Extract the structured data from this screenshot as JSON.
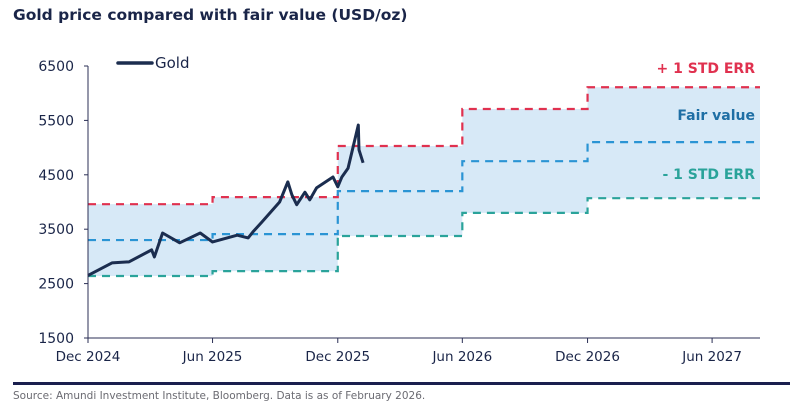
{
  "title": "Gold price compared with fair value (USD/oz)",
  "source": "Source: Amundi Investment Institute, Bloomberg. Data is as of February 2026.",
  "chart_data": {
    "type": "line",
    "title": "Gold price compared with fair value (USD/oz)",
    "xlabel": "",
    "ylabel": "",
    "xlim": [
      "2024-12-01",
      "2027-08-10"
    ],
    "ylim": [
      1500,
      6500
    ],
    "x_ticks": [
      {
        "date": "2024-12-01",
        "label": "Dec 2024"
      },
      {
        "date": "2025-06-01",
        "label": "Jun 2025"
      },
      {
        "date": "2025-12-01",
        "label": "Dec 2025"
      },
      {
        "date": "2026-06-01",
        "label": "Jun 2026"
      },
      {
        "date": "2026-12-01",
        "label": "Dec 2026"
      },
      {
        "date": "2027-06-01",
        "label": "Jun 2027"
      }
    ],
    "y_ticks": [
      6500,
      5500,
      4500,
      3500,
      2500,
      1500
    ],
    "grid": false,
    "legend": {
      "position": "top-left",
      "entries": [
        "Gold"
      ]
    },
    "series": [
      {
        "name": "Gold",
        "style": "solid",
        "color": "#1b2d4f",
        "x": [
          "2024-12-01",
          "2025-01-05",
          "2025-01-30",
          "2025-03-04",
          "2025-03-08",
          "2025-03-20",
          "2025-04-14",
          "2025-05-14",
          "2025-06-01",
          "2025-07-07",
          "2025-07-23",
          "2025-07-30",
          "2025-08-12",
          "2025-09-07",
          "2025-09-19",
          "2025-09-25",
          "2025-10-02",
          "2025-10-14",
          "2025-10-21",
          "2025-10-31",
          "2025-11-24",
          "2025-12-01",
          "2025-12-07",
          "2025-12-16",
          "2025-12-23",
          "2025-12-31",
          "2026-01-01",
          "2026-01-07"
        ],
        "y": [
          2650,
          2880,
          2900,
          3120,
          2990,
          3430,
          3250,
          3430,
          3265,
          3390,
          3340,
          3450,
          3630,
          4000,
          4370,
          4130,
          3950,
          4180,
          4040,
          4260,
          4460,
          4280,
          4460,
          4620,
          4990,
          5415,
          4960,
          4720
        ]
      },
      {
        "name": "+ 1 STD ERR",
        "style": "dashed-step",
        "color": "#e0314f",
        "x": [
          "2024-12-01",
          "2025-06-01",
          "2025-12-01",
          "2026-06-01",
          "2026-12-01",
          "2027-08-10"
        ],
        "y": [
          3960,
          4090,
          5030,
          5710,
          6110,
          6110
        ]
      },
      {
        "name": "Fair value",
        "style": "dashed-step",
        "color": "#2a94d4",
        "x": [
          "2024-12-01",
          "2025-06-01",
          "2025-12-01",
          "2026-06-01",
          "2026-12-01",
          "2027-08-10"
        ],
        "y": [
          3300,
          3410,
          4200,
          4750,
          5100,
          5100
        ]
      },
      {
        "name": "- 1 STD ERR",
        "style": "dashed-step",
        "color": "#2aa39a",
        "x": [
          "2024-12-01",
          "2025-06-01",
          "2025-12-01",
          "2026-06-01",
          "2026-12-01",
          "2027-08-10"
        ],
        "y": [
          2640,
          2730,
          3375,
          3800,
          4070,
          4070
        ]
      }
    ],
    "band_color": "#d7e9f7",
    "annotations": [
      {
        "text": "+ 1 STD ERR",
        "color": "#e0314f"
      },
      {
        "text": "Fair value",
        "color": "#1f6fa5"
      },
      {
        "text": "- 1 STD ERR",
        "color": "#2aa39a"
      }
    ]
  }
}
